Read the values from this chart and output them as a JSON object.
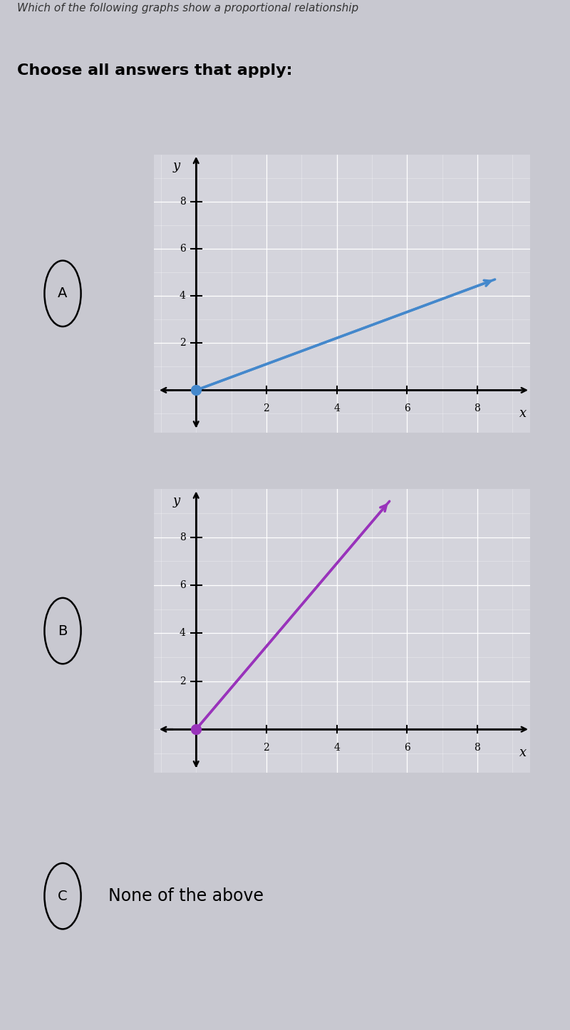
{
  "bg_color": "#c8c8d0",
  "panel_bg": "#c8c8d0",
  "graph_bg": "#d4d4dc",
  "separator_color": "#aaaaaa",
  "title_text": "Which of the following graphs show a proportional relationship",
  "subtitle_text": "Choose all answers that apply:",
  "option_C_text": "None of the above",
  "graph_A": {
    "xlim": [
      -1.2,
      9.5
    ],
    "ylim": [
      -1.8,
      10.0
    ],
    "xticks": [
      2,
      4,
      6,
      8
    ],
    "yticks": [
      2,
      4,
      6,
      8
    ],
    "line_x": [
      0,
      8.5
    ],
    "line_y": [
      0,
      4.7
    ],
    "line_color": "#4488cc",
    "dot_color": "#4488cc",
    "xlabel": "x",
    "ylabel": "y"
  },
  "graph_B": {
    "xlim": [
      -1.2,
      9.5
    ],
    "ylim": [
      -1.8,
      10.0
    ],
    "xticks": [
      2,
      4,
      6,
      8
    ],
    "yticks": [
      2,
      4,
      6,
      8
    ],
    "line_x": [
      0,
      5.5
    ],
    "line_y": [
      0,
      9.5
    ],
    "line_color": "#9933bb",
    "dot_color": "#9933bb",
    "xlabel": "x",
    "ylabel": "y"
  }
}
